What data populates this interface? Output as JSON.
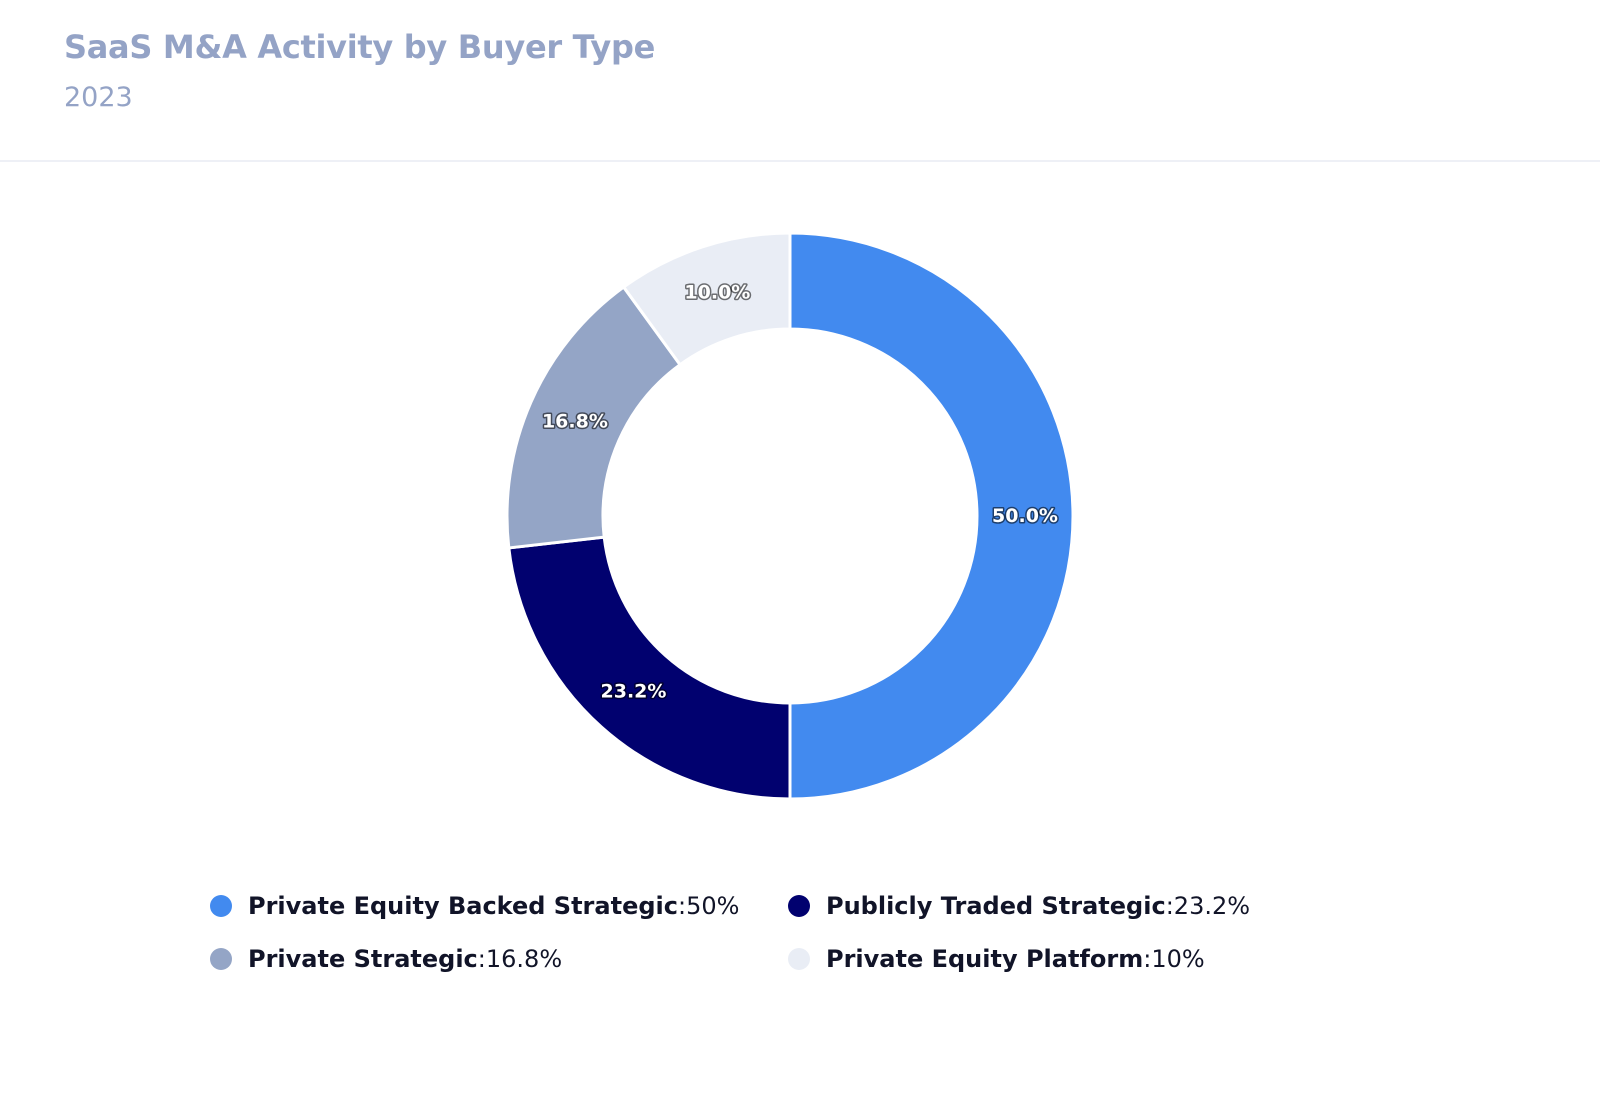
{
  "header": {
    "title": "SaaS M&A Activity by Buyer Type",
    "subtitle": "2023"
  },
  "chart_data": {
    "type": "pie",
    "variant": "donut",
    "title": "SaaS M&A Activity by Buyer Type",
    "subtitle": "2023",
    "legend_position": "bottom",
    "slices": [
      {
        "name": "Private Equity Backed Strategic",
        "value": 50.0,
        "label": "50.0%",
        "color": "#428aef"
      },
      {
        "name": "Publicly Traded Strategic",
        "value": 23.2,
        "label": "23.2%",
        "color": "#01016f"
      },
      {
        "name": "Private Strategic",
        "value": 16.8,
        "label": "16.8%",
        "color": "#94a5c6"
      },
      {
        "name": "Private Equity Platform",
        "value": 10.0,
        "label": "10.0%",
        "color": "#e9edf5"
      }
    ]
  },
  "legend": {
    "items": [
      {
        "name": "Private Equity Backed Strategic",
        "sep": ": ",
        "value": "50%",
        "color": "#428aef"
      },
      {
        "name": "Publicly Traded Strategic",
        "sep": " : ",
        "value": "23.2%",
        "color": "#01016f"
      },
      {
        "name": "Private Strategic",
        "sep": " : ",
        "value": "16.8%",
        "color": "#94a5c6"
      },
      {
        "name": "Private Equity Platform",
        "sep": " : ",
        "value": "10%",
        "color": "#e9edf5"
      }
    ]
  }
}
